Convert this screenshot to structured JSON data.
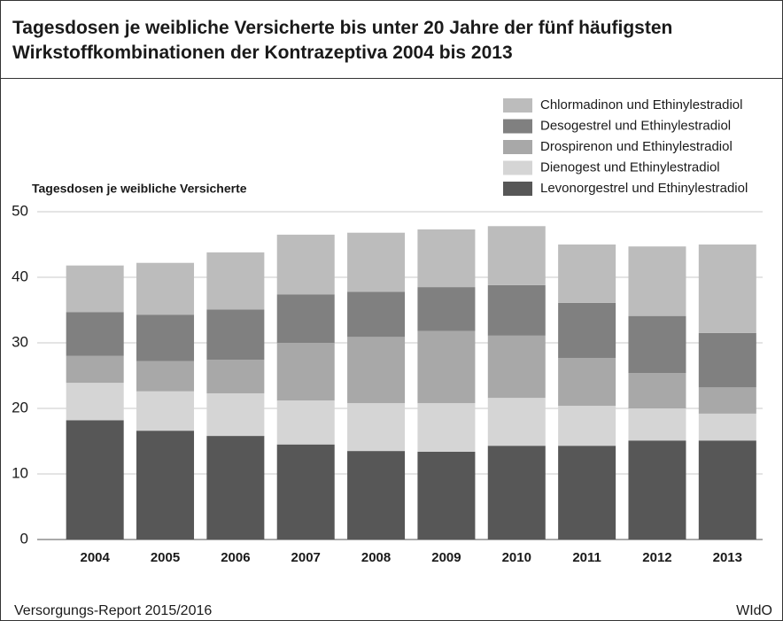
{
  "chart_data": {
    "type": "stacked_bar",
    "title": "Tagesdosen je weibliche Versicherte bis unter 20 Jahre der fünf häufigsten Wirkstoffkombinationen der Kontrazeptiva 2004 bis 2013",
    "y_axis_label": "Tagesdosen je  weibliche Versicherte",
    "source": "Versorgungs-Report 2015/2016",
    "publisher": "WIdO",
    "categories": [
      "2004",
      "2005",
      "2006",
      "2007",
      "2008",
      "2009",
      "2010",
      "2011",
      "2012",
      "2013"
    ],
    "series": [
      {
        "name": "Levonorgestrel und Ethinylestradiol",
        "color": "#575757",
        "values": [
          18.2,
          16.6,
          15.8,
          14.5,
          13.5,
          13.4,
          14.3,
          14.3,
          15.1,
          15.1
        ]
      },
      {
        "name": "Dienogest und Ethinylestradiol",
        "color": "#d5d5d5",
        "values": [
          5.7,
          6.0,
          6.5,
          6.7,
          7.3,
          7.4,
          7.3,
          6.1,
          4.9,
          4.1
        ]
      },
      {
        "name": "Drospirenon und Ethinylestradiol",
        "color": "#a8a8a8",
        "values": [
          4.1,
          4.6,
          5.1,
          8.8,
          10.1,
          11.0,
          9.5,
          7.3,
          5.4,
          4.0
        ]
      },
      {
        "name": "Desogestrel und Ethinylestradiol",
        "color": "#808080",
        "values": [
          6.7,
          7.1,
          7.7,
          7.4,
          6.9,
          6.7,
          7.7,
          8.4,
          8.7,
          8.3
        ]
      },
      {
        "name": "Chlormadinon und Ethinylestradiol",
        "color": "#bcbcbc",
        "values": [
          7.1,
          7.9,
          8.7,
          9.1,
          9.0,
          8.8,
          9.0,
          8.9,
          10.6,
          13.5
        ]
      }
    ],
    "ylim": [
      0,
      50
    ],
    "yticks": [
      0,
      10,
      20,
      30,
      40,
      50
    ],
    "grid": true,
    "legend_position": "top-right"
  }
}
